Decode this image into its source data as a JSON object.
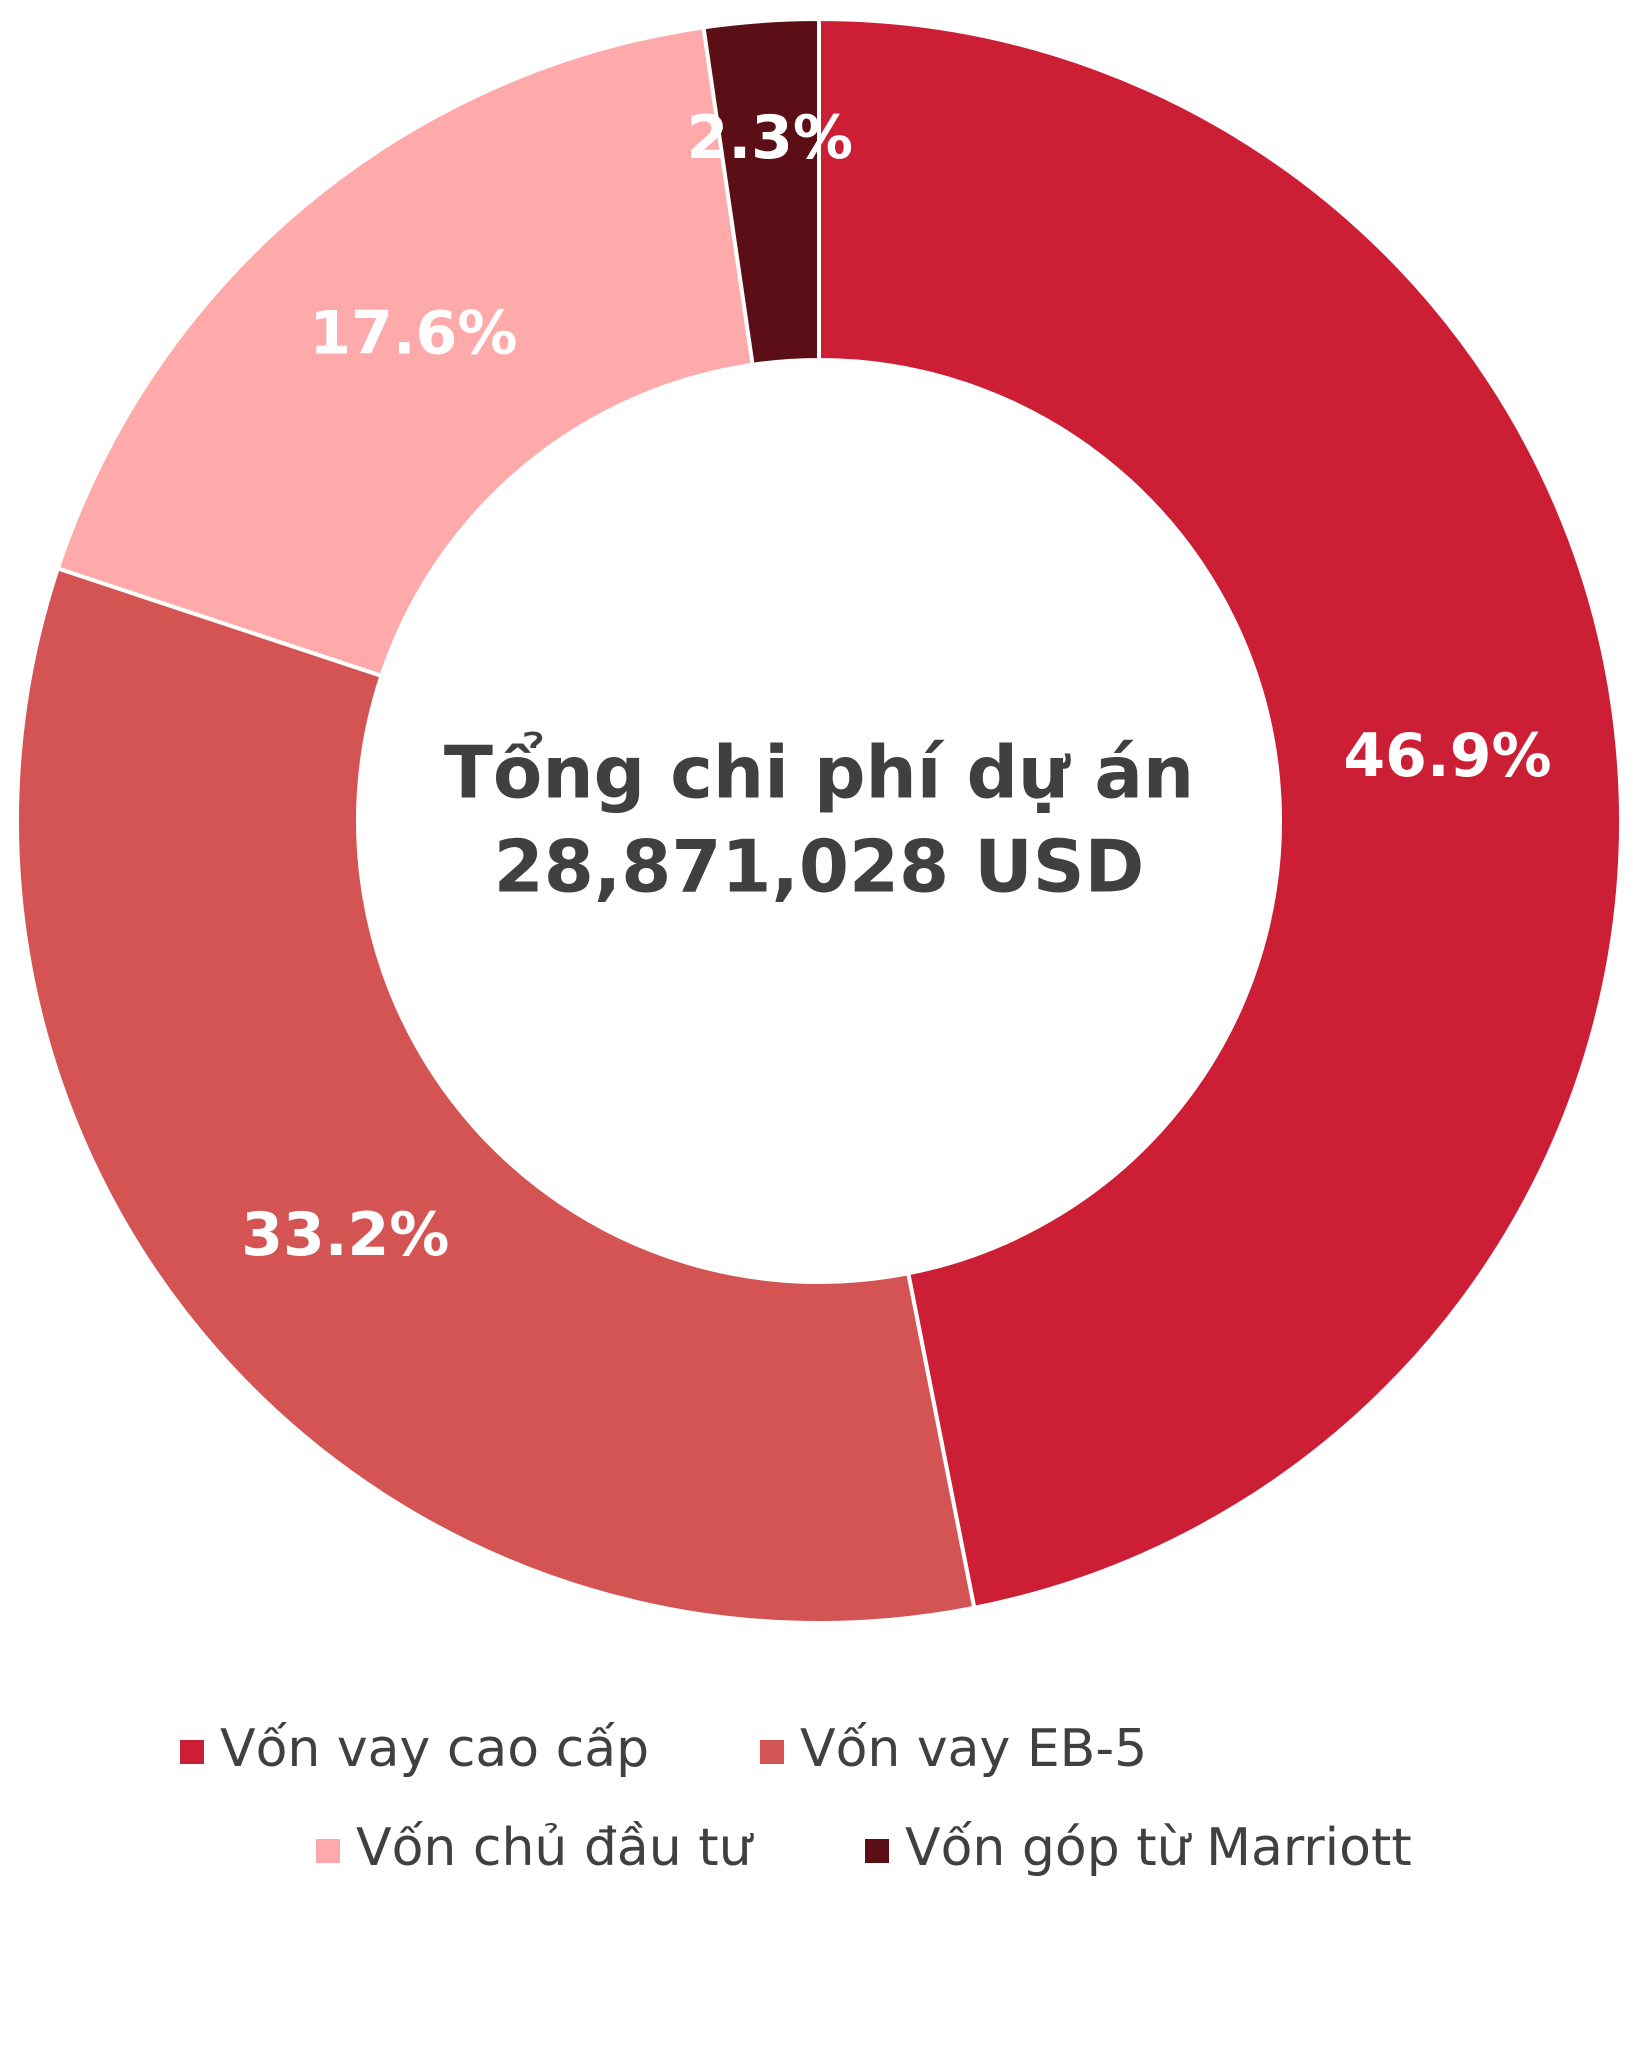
{
  "chart_data": {
    "type": "donut",
    "title": "Tổng chi phí dự án",
    "subtitle": "28,871,028 USD",
    "categories": [
      "Vốn vay cao cấp",
      "Vốn vay EB-5",
      "Vốn chủ đầu tư",
      "Vốn góp từ Marriott"
    ],
    "values": [
      46.9,
      33.2,
      17.6,
      2.3
    ],
    "value_labels": [
      "46.9%",
      "33.2%",
      "17.6%",
      "2.3%"
    ],
    "colors": [
      "#cc1f36",
      "#d45454",
      "#ffaaaa",
      "#5c0e17"
    ],
    "legend": "bottom"
  }
}
